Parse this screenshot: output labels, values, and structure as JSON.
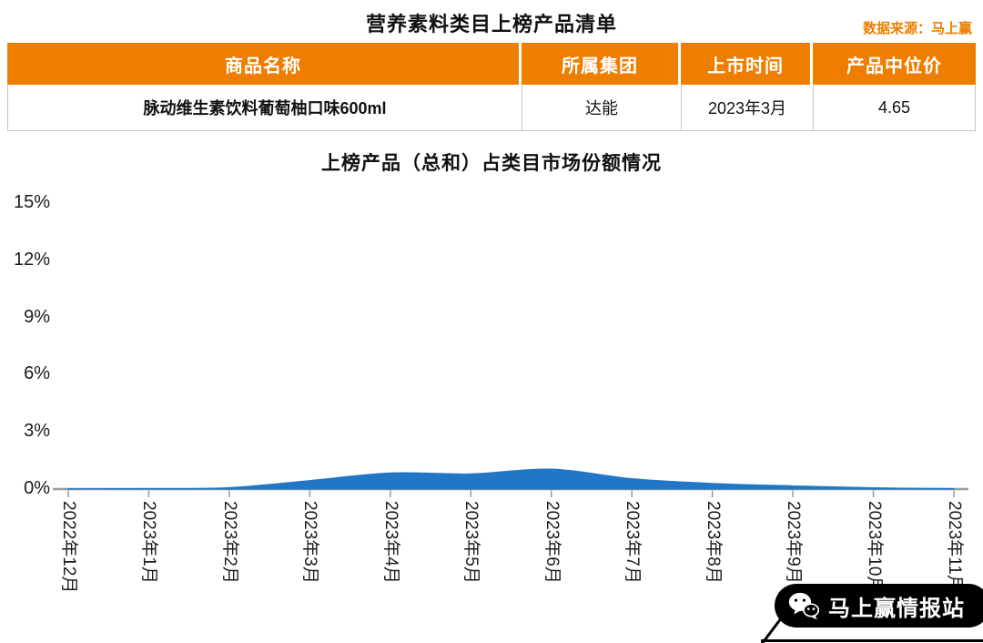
{
  "page": {
    "title": "营养素料类目上榜产品清单",
    "data_source": "数据来源：马上赢"
  },
  "table": {
    "headers": [
      "商品名称",
      "所属集团",
      "上市时间",
      "产品中位价"
    ],
    "rows": [
      [
        "脉动维生素饮料葡萄柚口味600ml",
        "达能",
        "2023年3月",
        "4.65"
      ]
    ]
  },
  "chart_data": {
    "type": "area",
    "title": "上榜产品（总和）占类目市场份额情况",
    "x_labels": [
      "2022年12月",
      "2023年1月",
      "2023年2月",
      "2023年3月",
      "2023年4月",
      "2023年5月",
      "2023年6月",
      "2023年7月",
      "2023年8月",
      "2023年9月",
      "2023年10月",
      "2023年11月"
    ],
    "values": [
      0.02,
      0.03,
      0.08,
      0.45,
      0.85,
      0.8,
      1.05,
      0.55,
      0.3,
      0.17,
      0.07,
      0.03
    ],
    "xlabel": "",
    "ylabel": "",
    "ylim": [
      0,
      15
    ],
    "y_tick_values": [
      0,
      3,
      6,
      9,
      12,
      15
    ],
    "y_tick_labels": [
      "0%",
      "3%",
      "6%",
      "9%",
      "12%",
      "15%"
    ],
    "grid": false,
    "legend": "none",
    "area_color": "#2176C5"
  },
  "watermark": {
    "label": "马上赢情报站",
    "icon": "wechat-icon"
  },
  "colors": {
    "accent_orange": "#EF7D00",
    "area_blue": "#2176C5",
    "axis_gray": "#9a9a9a"
  }
}
